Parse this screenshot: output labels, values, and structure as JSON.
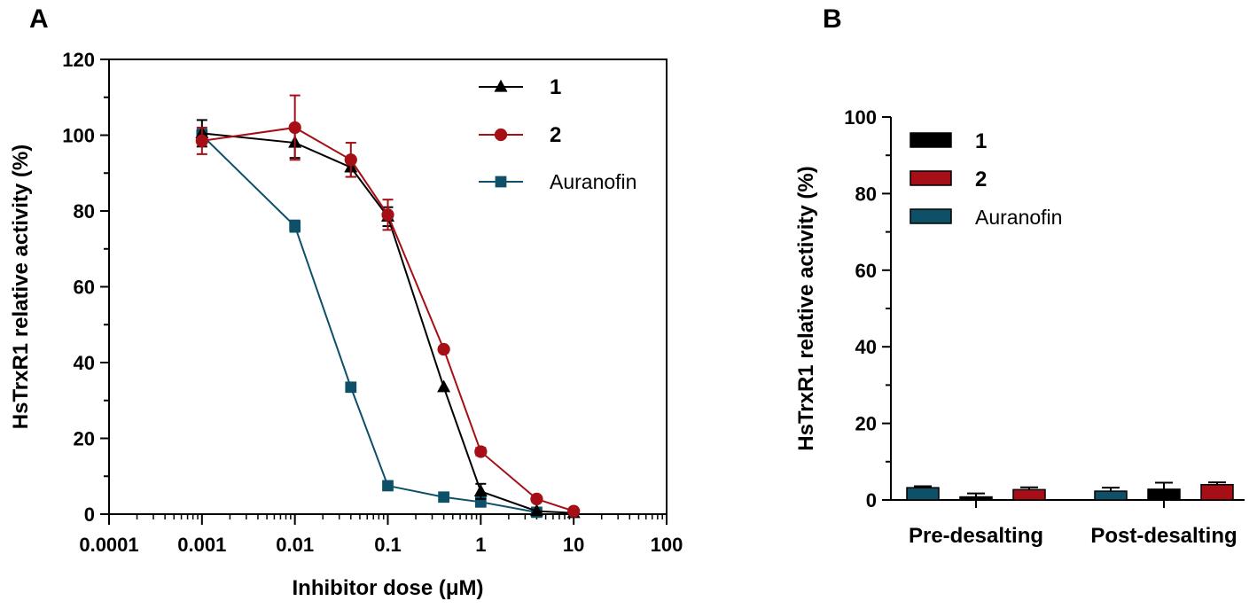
{
  "panels": {
    "a_label": "A",
    "b_label": "B"
  },
  "chart_data": [
    {
      "type": "line",
      "xscale": "log",
      "xlim": [
        0.0001,
        100
      ],
      "ylim": [
        0,
        120
      ],
      "xticks": [
        0.0001,
        0.001,
        0.01,
        0.1,
        1,
        10,
        100
      ],
      "xtick_labels": [
        "0.0001",
        "0.001",
        "0.01",
        "0.1",
        "1",
        "10",
        "100"
      ],
      "yticks": [
        0,
        20,
        40,
        60,
        80,
        100,
        120
      ],
      "ytick_labels": [
        "0",
        "20",
        "40",
        "60",
        "80",
        "100",
        "120"
      ],
      "xlabel": "Inhibitor dose (μM)",
      "ylabel": "HsTrxR1 relative activity (%)",
      "legend_position": "top-right",
      "series": [
        {
          "name": "1",
          "color": "#000000",
          "marker": "triangle",
          "x": [
            0.001,
            0.01,
            0.04,
            0.1,
            0.4,
            1,
            4,
            10
          ],
          "y": [
            100.5,
            98,
            91.5,
            78.5,
            33.5,
            6,
            0.8,
            0.3
          ],
          "err": [
            3.5,
            4,
            2.5,
            2.5,
            0,
            2,
            0,
            0
          ]
        },
        {
          "name": "2",
          "color": "#a50f15",
          "marker": "circle",
          "x": [
            0.001,
            0.01,
            0.04,
            0.1,
            0.4,
            1,
            4,
            10
          ],
          "y": [
            98.5,
            102,
            93.5,
            79,
            43.5,
            16.5,
            4,
            0.8
          ],
          "err": [
            3.5,
            8.5,
            4.5,
            4,
            0,
            1,
            0.8,
            0
          ]
        },
        {
          "name": "Auranofin",
          "color": "#0d5068",
          "marker": "square",
          "x": [
            0.001,
            0.01,
            0.04,
            0.1,
            0.4,
            1,
            4
          ],
          "y": [
            100,
            76,
            33.5,
            7.5,
            4.5,
            3.2,
            0.5
          ],
          "err": [
            1.5,
            1.5,
            0,
            0,
            0,
            0,
            0
          ]
        }
      ]
    },
    {
      "type": "bar",
      "categories": [
        "Pre-desalting",
        "Post-desalting"
      ],
      "ylim": [
        0,
        100
      ],
      "yticks": [
        0,
        20,
        40,
        60,
        80,
        100
      ],
      "ytick_labels": [
        "0",
        "20",
        "40",
        "60",
        "80",
        "100"
      ],
      "ylabel": "HsTrxR1 relative activity (%)",
      "xlabel": "",
      "legend_position": "top-left",
      "series": [
        {
          "name": "Auranofin",
          "color": "#0d5068",
          "values": [
            3.2,
            2.3
          ],
          "err": [
            0.4,
            0.9
          ]
        },
        {
          "name": "1",
          "color": "#000000",
          "values": [
            0.8,
            2.8
          ],
          "err": [
            0.9,
            1.7
          ]
        },
        {
          "name": "2",
          "color": "#a50f15",
          "values": [
            2.7,
            4
          ],
          "err": [
            0.6,
            0.6
          ]
        }
      ],
      "legend_order": [
        "1",
        "2",
        "Auranofin"
      ]
    }
  ]
}
